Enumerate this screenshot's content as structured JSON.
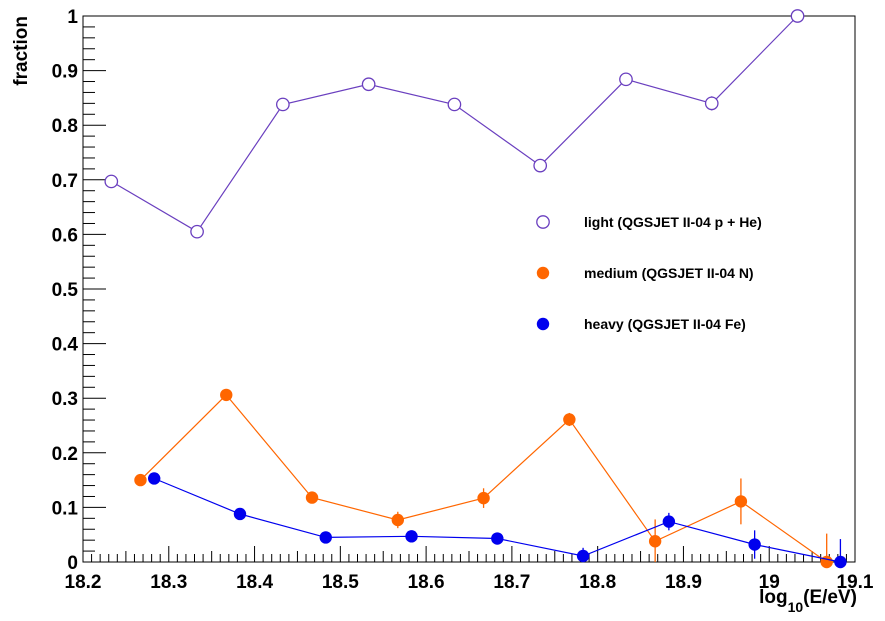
{
  "chart_data": {
    "type": "scatter",
    "xlabel": {
      "prefix": "log",
      "subscript": "10",
      "suffix": "(E/eV)"
    },
    "ylabel": "fraction",
    "xlim": [
      18.2,
      19.1
    ],
    "ylim": [
      0,
      1
    ],
    "x_ticks": [
      "18.2",
      "18.3",
      "18.4",
      "18.5",
      "18.6",
      "18.7",
      "18.8",
      "18.9",
      "19",
      "19.1"
    ],
    "y_ticks": [
      "0",
      "0.1",
      "0.2",
      "0.3",
      "0.4",
      "0.5",
      "0.6",
      "0.7",
      "0.8",
      "0.9",
      "1"
    ],
    "grid": false,
    "legend_position": "right",
    "series": [
      {
        "name": "light (QGSJET II-04 p + He)",
        "color": "#6a3fbf",
        "marker": "open-circle",
        "x": [
          18.233,
          18.333,
          18.433,
          18.533,
          18.633,
          18.733,
          18.833,
          18.933,
          19.033
        ],
        "y": [
          0.697,
          0.605,
          0.838,
          0.875,
          0.838,
          0.726,
          0.884,
          0.84,
          1.0
        ],
        "yerr": [
          0.004,
          0.004,
          0.004,
          0.004,
          0.004,
          0.004,
          0.004,
          0.013,
          0.003
        ]
      },
      {
        "name": "medium (QGSJET II-04 N)",
        "color": "#ff6600",
        "marker": "filled-circle",
        "x": [
          18.267,
          18.367,
          18.467,
          18.567,
          18.667,
          18.767,
          18.867,
          18.967,
          19.067
        ],
        "y": [
          0.15,
          0.306,
          0.118,
          0.077,
          0.117,
          0.261,
          0.038,
          0.111,
          0.0
        ],
        "yerr": [
          0.004,
          0.004,
          0.004,
          0.015,
          0.018,
          0.012,
          0.04,
          0.042,
          0.052
        ]
      },
      {
        "name": "heavy (QGSJET II-04 Fe)",
        "color": "#0000ee",
        "marker": "filled-circle",
        "x": [
          18.283,
          18.383,
          18.483,
          18.583,
          18.683,
          18.783,
          18.883,
          18.983,
          19.083
        ],
        "y": [
          0.153,
          0.088,
          0.045,
          0.047,
          0.043,
          0.011,
          0.074,
          0.032,
          0.0
        ],
        "yerr": [
          0.004,
          0.004,
          0.004,
          0.004,
          0.004,
          0.015,
          0.016,
          0.026,
          0.042
        ]
      }
    ]
  }
}
